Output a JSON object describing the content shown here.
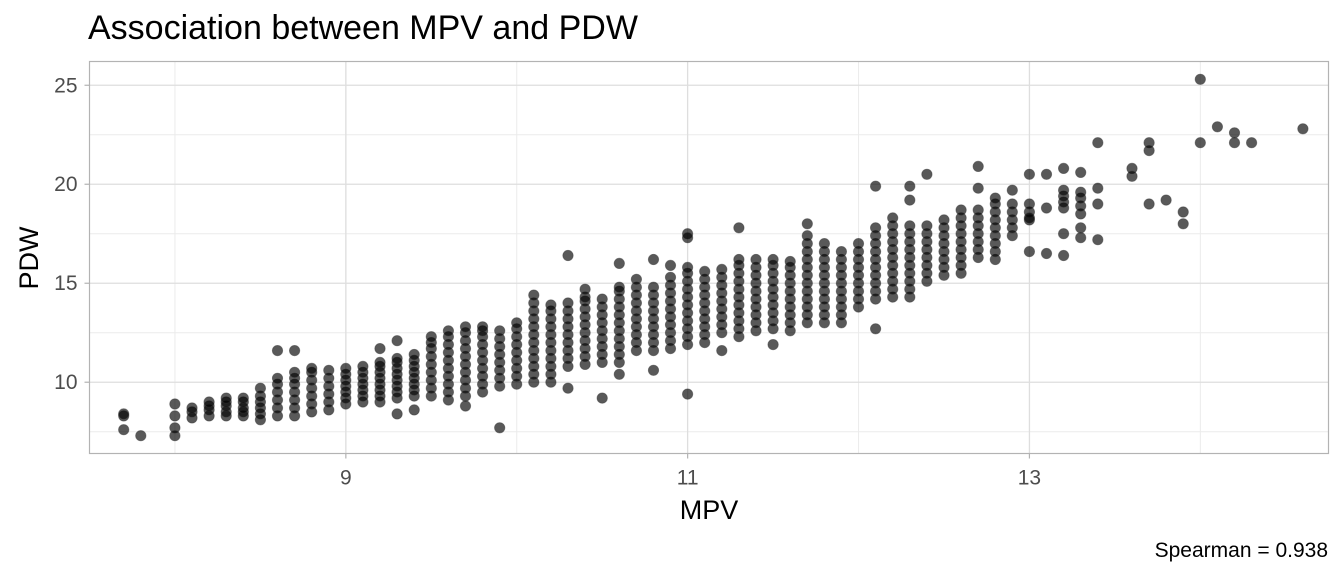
{
  "chart_data": {
    "type": "scatter",
    "title": "Association between MPV and PDW",
    "xlabel": "MPV",
    "ylabel": "PDW",
    "caption": "Spearman = 0.938",
    "xlim": [
      7.5,
      14.75
    ],
    "ylim": [
      6.4,
      26.2
    ],
    "x_ticks": [
      9,
      11,
      13
    ],
    "y_ticks": [
      10,
      15,
      20,
      25
    ],
    "x_tick_labels": [
      "9",
      "11",
      "13"
    ],
    "y_tick_labels": [
      "10",
      "15",
      "20",
      "25"
    ],
    "grid": true,
    "legend": "none",
    "point_color": "#000000",
    "point_opacity": 0.65,
    "point_outline": "#333333",
    "columns": [
      {
        "x": 8.1,
        "y": [
          8.2,
          8.5,
          8.7
        ]
      },
      {
        "x": 8.2,
        "y": [
          8.3,
          8.6,
          8.8,
          9.0
        ]
      },
      {
        "x": 8.3,
        "y": [
          8.3,
          8.5,
          8.8,
          9.0,
          9.2
        ]
      },
      {
        "x": 8.4,
        "y": [
          8.3,
          8.5,
          8.7,
          9.0,
          9.2
        ]
      },
      {
        "x": 8.5,
        "y": [
          8.1,
          8.4,
          8.7,
          9.0,
          9.3,
          9.7
        ]
      },
      {
        "x": 8.6,
        "y": [
          8.3,
          8.7,
          9.1,
          9.5,
          9.9,
          10.2
        ]
      },
      {
        "x": 8.7,
        "y": [
          8.3,
          8.7,
          9.1,
          9.5,
          9.9,
          10.2,
          10.5
        ]
      },
      {
        "x": 8.8,
        "y": [
          8.5,
          8.9,
          9.3,
          9.7,
          10.1,
          10.5,
          10.7
        ]
      },
      {
        "x": 8.9,
        "y": [
          8.6,
          9.0,
          9.4,
          9.8,
          10.2,
          10.6
        ]
      },
      {
        "x": 9.0,
        "y": [
          8.9,
          9.2,
          9.5,
          9.8,
          10.1,
          10.4,
          10.7
        ]
      },
      {
        "x": 9.1,
        "y": [
          9.0,
          9.3,
          9.6,
          9.9,
          10.2,
          10.5,
          10.8
        ]
      },
      {
        "x": 9.2,
        "y": [
          9.0,
          9.3,
          9.6,
          9.9,
          10.2,
          10.5,
          10.8,
          11.0
        ]
      },
      {
        "x": 9.3,
        "y": [
          9.2,
          9.5,
          9.8,
          10.1,
          10.4,
          10.7,
          11.0,
          11.2
        ]
      },
      {
        "x": 9.4,
        "y": [
          9.3,
          9.6,
          9.9,
          10.2,
          10.5,
          10.8,
          11.1,
          11.4
        ]
      },
      {
        "x": 9.5,
        "y": [
          9.3,
          9.7,
          10.1,
          10.5,
          10.9,
          11.3,
          11.7,
          12.0,
          12.3
        ]
      },
      {
        "x": 9.6,
        "y": [
          9.1,
          9.5,
          9.9,
          10.3,
          10.7,
          11.1,
          11.5,
          11.9,
          12.3,
          12.6
        ]
      },
      {
        "x": 9.7,
        "y": [
          9.3,
          9.7,
          10.1,
          10.5,
          10.9,
          11.3,
          11.7,
          12.1,
          12.5,
          12.8
        ]
      },
      {
        "x": 9.8,
        "y": [
          9.5,
          9.9,
          10.3,
          10.7,
          11.1,
          11.5,
          11.9,
          12.3,
          12.6,
          12.8
        ]
      },
      {
        "x": 9.9,
        "y": [
          9.8,
          10.2,
          10.6,
          11.0,
          11.4,
          11.8,
          12.2,
          12.6
        ]
      },
      {
        "x": 10.0,
        "y": [
          9.9,
          10.3,
          10.7,
          11.1,
          11.5,
          11.9,
          12.3,
          12.7,
          13.0
        ]
      },
      {
        "x": 10.1,
        "y": [
          10.0,
          10.4,
          10.8,
          11.2,
          11.6,
          12.0,
          12.4,
          12.8,
          13.2,
          13.6,
          14.0,
          14.4
        ]
      },
      {
        "x": 10.2,
        "y": [
          10.0,
          10.4,
          10.8,
          11.2,
          11.6,
          12.0,
          12.4,
          12.8,
          13.2,
          13.6,
          13.9
        ]
      },
      {
        "x": 10.3,
        "y": [
          10.8,
          11.2,
          11.6,
          12.0,
          12.4,
          12.8,
          13.2,
          13.6,
          14.0
        ]
      },
      {
        "x": 10.4,
        "y": [
          10.9,
          11.3,
          11.7,
          12.1,
          12.5,
          12.9,
          13.3,
          13.7,
          14.1,
          14.3
        ]
      },
      {
        "x": 10.5,
        "y": [
          11.0,
          11.4,
          11.8,
          12.2,
          12.6,
          13.0,
          13.4,
          13.8,
          14.2
        ]
      },
      {
        "x": 10.6,
        "y": [
          11.0,
          11.4,
          11.8,
          12.2,
          12.6,
          13.0,
          13.4,
          13.8,
          14.2,
          14.6,
          14.8
        ]
      },
      {
        "x": 10.7,
        "y": [
          11.6,
          12.0,
          12.4,
          12.8,
          13.2,
          13.6,
          14.0,
          14.4,
          14.8,
          15.2
        ]
      },
      {
        "x": 10.8,
        "y": [
          11.6,
          12.0,
          12.4,
          12.8,
          13.2,
          13.6,
          14.0,
          14.4,
          14.8
        ]
      },
      {
        "x": 10.9,
        "y": [
          11.7,
          12.1,
          12.5,
          12.9,
          13.3,
          13.7,
          14.1,
          14.5,
          14.9,
          15.3
        ]
      },
      {
        "x": 11.0,
        "y": [
          11.9,
          12.3,
          12.7,
          13.1,
          13.5,
          13.9,
          14.3,
          14.7,
          15.1,
          15.5,
          15.8
        ]
      },
      {
        "x": 11.1,
        "y": [
          12.0,
          12.4,
          12.8,
          13.2,
          13.6,
          14.0,
          14.4,
          14.8,
          15.2,
          15.6
        ]
      },
      {
        "x": 11.2,
        "y": [
          12.5,
          12.9,
          13.3,
          13.7,
          14.1,
          14.5,
          14.9,
          15.3,
          15.7
        ]
      },
      {
        "x": 11.3,
        "y": [
          12.3,
          12.7,
          13.1,
          13.5,
          13.9,
          14.3,
          14.7,
          15.1,
          15.5,
          15.9,
          16.2
        ]
      },
      {
        "x": 11.4,
        "y": [
          12.6,
          13.0,
          13.4,
          13.8,
          14.2,
          14.6,
          15.0,
          15.4,
          15.8,
          16.2
        ]
      },
      {
        "x": 11.5,
        "y": [
          12.7,
          13.1,
          13.5,
          13.9,
          14.3,
          14.7,
          15.1,
          15.5,
          15.9,
          16.2
        ]
      },
      {
        "x": 11.6,
        "y": [
          12.6,
          13.0,
          13.4,
          13.8,
          14.2,
          14.6,
          15.0,
          15.4,
          15.8,
          16.1
        ]
      },
      {
        "x": 11.7,
        "y": [
          13.0,
          13.4,
          13.8,
          14.2,
          14.6,
          15.0,
          15.4,
          15.8,
          16.2,
          16.6,
          17.0,
          17.4
        ]
      },
      {
        "x": 11.8,
        "y": [
          13.0,
          13.4,
          13.8,
          14.2,
          14.6,
          15.0,
          15.4,
          15.8,
          16.2,
          16.6,
          17.0
        ]
      },
      {
        "x": 11.9,
        "y": [
          13.0,
          13.4,
          13.8,
          14.2,
          14.6,
          15.0,
          15.4,
          15.8,
          16.2,
          16.6
        ]
      },
      {
        "x": 12.0,
        "y": [
          13.8,
          14.2,
          14.6,
          15.0,
          15.4,
          15.8,
          16.2,
          16.6,
          17.0
        ]
      },
      {
        "x": 12.1,
        "y": [
          14.2,
          14.6,
          15.0,
          15.4,
          15.8,
          16.2,
          16.6,
          17.0,
          17.4,
          17.8
        ]
      },
      {
        "x": 12.2,
        "y": [
          14.3,
          14.7,
          15.1,
          15.5,
          15.9,
          16.3,
          16.7,
          17.1,
          17.5,
          17.9,
          18.3
        ]
      },
      {
        "x": 12.3,
        "y": [
          14.3,
          14.7,
          15.1,
          15.5,
          15.9,
          16.3,
          16.7,
          17.1,
          17.5,
          17.9
        ]
      },
      {
        "x": 12.4,
        "y": [
          15.1,
          15.5,
          15.9,
          16.3,
          16.7,
          17.1,
          17.5,
          17.9
        ]
      },
      {
        "x": 12.5,
        "y": [
          15.4,
          15.8,
          16.2,
          16.6,
          17.0,
          17.4,
          17.8,
          18.2
        ]
      },
      {
        "x": 12.6,
        "y": [
          15.5,
          15.9,
          16.3,
          16.7,
          17.1,
          17.5,
          17.9,
          18.3,
          18.7
        ]
      },
      {
        "x": 12.7,
        "y": [
          16.3,
          16.7,
          17.1,
          17.5,
          17.9,
          18.3,
          18.7
        ]
      },
      {
        "x": 12.8,
        "y": [
          16.2,
          16.6,
          17.0,
          17.4,
          17.8,
          18.2,
          18.6,
          19.0
        ]
      },
      {
        "x": 12.9,
        "y": [
          17.4,
          17.8,
          18.2,
          18.6,
          19.0
        ]
      },
      {
        "x": 13.0,
        "y": [
          18.2,
          18.6,
          19.0
        ]
      },
      {
        "x": 13.2,
        "y": [
          18.8,
          19.1,
          19.4,
          19.7
        ]
      },
      {
        "x": 13.3,
        "y": [
          18.5,
          18.9,
          19.3,
          19.6
        ]
      }
    ],
    "points": [
      {
        "x": 7.7,
        "y": 8.3
      },
      {
        "x": 7.7,
        "y": 8.4
      },
      {
        "x": 7.7,
        "y": 7.6
      },
      {
        "x": 7.8,
        "y": 7.3
      },
      {
        "x": 8.0,
        "y": 8.9
      },
      {
        "x": 8.0,
        "y": 8.3
      },
      {
        "x": 8.0,
        "y": 7.7
      },
      {
        "x": 8.0,
        "y": 7.3
      },
      {
        "x": 8.6,
        "y": 11.6
      },
      {
        "x": 8.7,
        "y": 11.6
      },
      {
        "x": 9.2,
        "y": 11.7
      },
      {
        "x": 9.3,
        "y": 12.1
      },
      {
        "x": 9.3,
        "y": 8.4
      },
      {
        "x": 9.4,
        "y": 8.6
      },
      {
        "x": 9.7,
        "y": 8.8
      },
      {
        "x": 9.9,
        "y": 7.7
      },
      {
        "x": 10.3,
        "y": 16.4
      },
      {
        "x": 10.3,
        "y": 9.7
      },
      {
        "x": 10.4,
        "y": 14.7
      },
      {
        "x": 10.5,
        "y": 9.2
      },
      {
        "x": 10.6,
        "y": 16.0
      },
      {
        "x": 10.6,
        "y": 10.4
      },
      {
        "x": 10.8,
        "y": 16.2
      },
      {
        "x": 10.8,
        "y": 10.6
      },
      {
        "x": 10.9,
        "y": 15.9
      },
      {
        "x": 11.0,
        "y": 17.5
      },
      {
        "x": 11.0,
        "y": 17.3
      },
      {
        "x": 11.0,
        "y": 9.4
      },
      {
        "x": 11.2,
        "y": 11.6
      },
      {
        "x": 11.3,
        "y": 17.8
      },
      {
        "x": 11.5,
        "y": 11.9
      },
      {
        "x": 11.7,
        "y": 18.0
      },
      {
        "x": 12.1,
        "y": 19.9
      },
      {
        "x": 12.1,
        "y": 12.7
      },
      {
        "x": 12.3,
        "y": 19.9
      },
      {
        "x": 12.3,
        "y": 19.2
      },
      {
        "x": 12.4,
        "y": 20.5
      },
      {
        "x": 12.7,
        "y": 20.9
      },
      {
        "x": 12.7,
        "y": 19.8
      },
      {
        "x": 12.8,
        "y": 19.3
      },
      {
        "x": 12.9,
        "y": 19.7
      },
      {
        "x": 13.0,
        "y": 20.5
      },
      {
        "x": 13.1,
        "y": 20.5
      },
      {
        "x": 13.0,
        "y": 18.3
      },
      {
        "x": 13.1,
        "y": 18.8
      },
      {
        "x": 13.0,
        "y": 16.6
      },
      {
        "x": 13.1,
        "y": 16.5
      },
      {
        "x": 13.2,
        "y": 20.8
      },
      {
        "x": 13.2,
        "y": 17.5
      },
      {
        "x": 13.2,
        "y": 16.4
      },
      {
        "x": 13.3,
        "y": 20.6
      },
      {
        "x": 13.3,
        "y": 17.8
      },
      {
        "x": 13.3,
        "y": 17.3
      },
      {
        "x": 13.4,
        "y": 22.1
      },
      {
        "x": 13.4,
        "y": 19.8
      },
      {
        "x": 13.4,
        "y": 19.0
      },
      {
        "x": 13.4,
        "y": 17.2
      },
      {
        "x": 13.6,
        "y": 20.8
      },
      {
        "x": 13.6,
        "y": 20.4
      },
      {
        "x": 13.7,
        "y": 22.1
      },
      {
        "x": 13.7,
        "y": 21.7
      },
      {
        "x": 13.7,
        "y": 19.0
      },
      {
        "x": 13.8,
        "y": 19.2
      },
      {
        "x": 13.9,
        "y": 18.6
      },
      {
        "x": 13.9,
        "y": 18.0
      },
      {
        "x": 14.0,
        "y": 25.3
      },
      {
        "x": 14.0,
        "y": 22.1
      },
      {
        "x": 14.1,
        "y": 22.9
      },
      {
        "x": 14.2,
        "y": 22.6
      },
      {
        "x": 14.2,
        "y": 22.1
      },
      {
        "x": 14.3,
        "y": 22.1
      },
      {
        "x": 14.6,
        "y": 22.8
      }
    ]
  }
}
